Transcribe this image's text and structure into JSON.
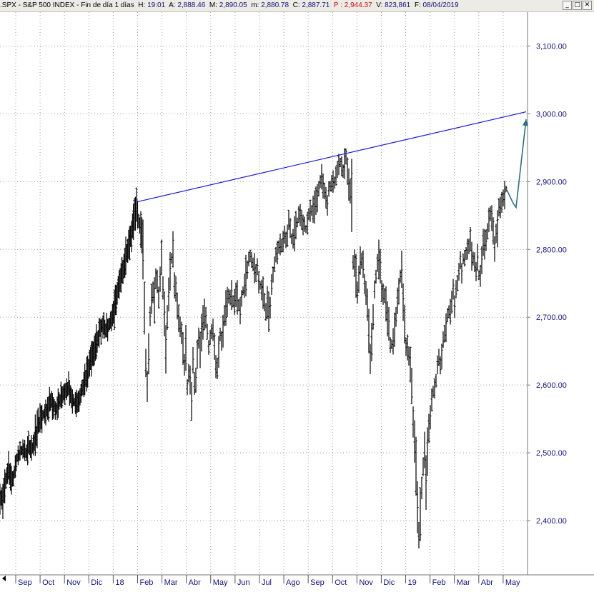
{
  "header": {
    "symbol": ".SPX",
    "sep1": " - ",
    "name": "S&P 500 INDEX",
    "sep2": " - ",
    "period": "Fin de día 1 días",
    "h_label": "H:",
    "h_value": "19:01",
    "a_label": "A:",
    "a_value": "2,888.46",
    "m_label": "M:",
    "m_value": "2,890.05",
    "mm_label": "m:",
    "mm_value": "2,880.78",
    "c_label": "C:",
    "c_value": "2,887.71",
    "p_label": "P :",
    "p_value": "2,944.37",
    "v_label": "V:",
    "v_value": "823,861",
    "f_label": "F:",
    "f_value": "08/04/2019"
  },
  "window_controls": {
    "minimize": "_",
    "restore": "□",
    "close": "✕"
  },
  "colors": {
    "price": "#000000",
    "trendline": "#1a1ad2",
    "projection_arrow": "#2e6f7a",
    "axis_text": "#13137a",
    "grid": "#a0a0a0"
  },
  "chart_data": {
    "type": "bar",
    "subtype": "ohlc-daily",
    "title": "",
    "xlabel": "",
    "ylabel": "",
    "ylim": [
      2320,
      3150
    ],
    "yticks": [
      2400,
      2500,
      2600,
      2700,
      2800,
      2900,
      3000,
      3100
    ],
    "ytick_labels": [
      "2,400.00",
      "2,500.00",
      "2,600.00",
      "2,700.00",
      "2,800.00",
      "2,900.00",
      "3,000.00",
      "3,100.00"
    ],
    "xaxis_labels": [
      "Sep",
      "Oct",
      "Nov",
      "Dic",
      "18",
      "Feb",
      "Mar",
      "Abr",
      "May",
      "Jun",
      "Jul",
      "Ago",
      "Sep",
      "Oct",
      "Nov",
      "Dic",
      "19",
      "Feb",
      "Mar",
      "Abr",
      "May"
    ],
    "grid": true,
    "series": [
      {
        "values": [
          [
            0,
            2440
          ],
          [
            4,
            2428
          ],
          [
            8,
            2462
          ],
          [
            12,
            2475
          ],
          [
            16,
            2460
          ],
          [
            20,
            2470
          ],
          [
            24,
            2492
          ],
          [
            28,
            2500
          ],
          [
            32,
            2508
          ],
          [
            36,
            2500
          ],
          [
            40,
            2510
          ],
          [
            44,
            2500
          ],
          [
            48,
            2515
          ],
          [
            52,
            2535
          ],
          [
            56,
            2550
          ],
          [
            60,
            2555
          ],
          [
            64,
            2560
          ],
          [
            68,
            2568
          ],
          [
            72,
            2575
          ],
          [
            76,
            2568
          ],
          [
            80,
            2565
          ],
          [
            84,
            2580
          ],
          [
            88,
            2585
          ],
          [
            92,
            2590
          ],
          [
            96,
            2595
          ],
          [
            100,
            2585
          ],
          [
            104,
            2575
          ],
          [
            108,
            2570
          ],
          [
            112,
            2585
          ],
          [
            116,
            2600
          ],
          [
            120,
            2610
          ],
          [
            124,
            2625
          ],
          [
            128,
            2640
          ],
          [
            132,
            2650
          ],
          [
            136,
            2665
          ],
          [
            140,
            2680
          ],
          [
            144,
            2690
          ],
          [
            148,
            2680
          ],
          [
            152,
            2685
          ],
          [
            156,
            2695
          ],
          [
            160,
            2712
          ],
          [
            164,
            2735
          ],
          [
            168,
            2750
          ],
          [
            172,
            2768
          ],
          [
            176,
            2790
          ],
          [
            180,
            2808
          ],
          [
            184,
            2828
          ],
          [
            188,
            2850
          ],
          [
            191,
            2870
          ],
          [
            194,
            2840
          ],
          [
            197,
            2830
          ],
          [
            200,
            2810
          ],
          [
            202,
            2700
          ],
          [
            204,
            2625
          ],
          [
            206,
            2600
          ],
          [
            208,
            2640
          ],
          [
            210,
            2700
          ],
          [
            212,
            2720
          ],
          [
            214,
            2740
          ],
          [
            216,
            2725
          ],
          [
            218,
            2760
          ],
          [
            220,
            2748
          ],
          [
            222,
            2735
          ],
          [
            224,
            2760
          ],
          [
            226,
            2785
          ],
          [
            228,
            2740
          ],
          [
            230,
            2700
          ],
          [
            232,
            2660
          ],
          [
            234,
            2700
          ],
          [
            236,
            2730
          ],
          [
            238,
            2770
          ],
          [
            240,
            2790
          ],
          [
            242,
            2795
          ],
          [
            244,
            2750
          ],
          [
            246,
            2740
          ],
          [
            248,
            2715
          ],
          [
            250,
            2700
          ],
          [
            252,
            2690
          ],
          [
            254,
            2680
          ],
          [
            256,
            2660
          ],
          [
            258,
            2630
          ],
          [
            260,
            2650
          ],
          [
            262,
            2600
          ],
          [
            264,
            2620
          ],
          [
            266,
            2605
          ],
          [
            268,
            2580
          ],
          [
            270,
            2640
          ],
          [
            272,
            2600
          ],
          [
            274,
            2610
          ],
          [
            276,
            2640
          ],
          [
            278,
            2670
          ],
          [
            280,
            2650
          ],
          [
            282,
            2675
          ],
          [
            284,
            2690
          ],
          [
            286,
            2705
          ],
          [
            288,
            2700
          ],
          [
            290,
            2680
          ],
          [
            292,
            2660
          ],
          [
            294,
            2670
          ],
          [
            296,
            2680
          ],
          [
            298,
            2680
          ],
          [
            300,
            2650
          ],
          [
            302,
            2630
          ],
          [
            304,
            2620
          ],
          [
            306,
            2650
          ],
          [
            308,
            2670
          ],
          [
            310,
            2665
          ],
          [
            312,
            2680
          ],
          [
            314,
            2700
          ],
          [
            316,
            2715
          ],
          [
            318,
            2722
          ],
          [
            320,
            2730
          ],
          [
            322,
            2725
          ],
          [
            324,
            2735
          ],
          [
            326,
            2725
          ],
          [
            328,
            2720
          ],
          [
            330,
            2735
          ],
          [
            332,
            2730
          ],
          [
            334,
            2715
          ],
          [
            336,
            2712
          ],
          [
            338,
            2730
          ],
          [
            340,
            2740
          ],
          [
            342,
            2748
          ],
          [
            344,
            2760
          ],
          [
            346,
            2775
          ],
          [
            348,
            2785
          ],
          [
            350,
            2790
          ],
          [
            352,
            2785
          ],
          [
            354,
            2780
          ],
          [
            356,
            2770
          ],
          [
            358,
            2760
          ],
          [
            360,
            2770
          ],
          [
            362,
            2755
          ],
          [
            364,
            2745
          ],
          [
            366,
            2740
          ],
          [
            368,
            2735
          ],
          [
            370,
            2725
          ],
          [
            372,
            2712
          ],
          [
            374,
            2720
          ],
          [
            376,
            2705
          ],
          [
            378,
            2720
          ],
          [
            380,
            2745
          ],
          [
            382,
            2765
          ],
          [
            384,
            2780
          ],
          [
            386,
            2790
          ],
          [
            388,
            2798
          ],
          [
            390,
            2805
          ],
          [
            392,
            2800
          ],
          [
            394,
            2810
          ],
          [
            396,
            2815
          ],
          [
            398,
            2820
          ],
          [
            400,
            2810
          ],
          [
            402,
            2825
          ],
          [
            404,
            2840
          ],
          [
            406,
            2830
          ],
          [
            408,
            2815
          ],
          [
            410,
            2810
          ],
          [
            412,
            2825
          ],
          [
            414,
            2835
          ],
          [
            416,
            2840
          ],
          [
            418,
            2850
          ],
          [
            420,
            2848
          ],
          [
            422,
            2845
          ],
          [
            424,
            2840
          ],
          [
            426,
            2835
          ],
          [
            428,
            2830
          ],
          [
            430,
            2840
          ],
          [
            432,
            2850
          ],
          [
            434,
            2850
          ],
          [
            436,
            2855
          ],
          [
            438,
            2860
          ],
          [
            440,
            2865
          ],
          [
            442,
            2872
          ],
          [
            444,
            2880
          ],
          [
            446,
            2890
          ],
          [
            448,
            2902
          ],
          [
            450,
            2905
          ],
          [
            452,
            2895
          ],
          [
            454,
            2885
          ],
          [
            456,
            2878
          ],
          [
            458,
            2870
          ],
          [
            460,
            2885
          ],
          [
            462,
            2892
          ],
          [
            464,
            2898
          ],
          [
            466,
            2900
          ],
          [
            468,
            2902
          ],
          [
            470,
            2910
          ],
          [
            472,
            2918
          ],
          [
            474,
            2922
          ],
          [
            476,
            2930
          ],
          [
            478,
            2925
          ],
          [
            480,
            2918
          ],
          [
            482,
            2925
          ],
          [
            484,
            2935
          ],
          [
            486,
            2912
          ],
          [
            488,
            2900
          ],
          [
            490,
            2880
          ],
          [
            492,
            2870
          ],
          [
            494,
            2780
          ],
          [
            496,
            2780
          ],
          [
            498,
            2760
          ],
          [
            500,
            2740
          ],
          [
            502,
            2760
          ],
          [
            504,
            2790
          ],
          [
            506,
            2780
          ],
          [
            508,
            2775
          ],
          [
            510,
            2750
          ],
          [
            512,
            2740
          ],
          [
            514,
            2720
          ],
          [
            516,
            2680
          ],
          [
            518,
            2640
          ],
          [
            520,
            2660
          ],
          [
            522,
            2700
          ],
          [
            524,
            2740
          ],
          [
            526,
            2760
          ],
          [
            528,
            2780
          ],
          [
            530,
            2790
          ],
          [
            532,
            2770
          ],
          [
            534,
            2740
          ],
          [
            536,
            2740
          ],
          [
            538,
            2730
          ],
          [
            540,
            2720
          ],
          [
            542,
            2700
          ],
          [
            544,
            2690
          ],
          [
            546,
            2660
          ],
          [
            548,
            2660
          ],
          [
            550,
            2665
          ],
          [
            552,
            2680
          ],
          [
            554,
            2700
          ],
          [
            556,
            2720
          ],
          [
            558,
            2740
          ],
          [
            560,
            2760
          ],
          [
            562,
            2780
          ],
          [
            564,
            2730
          ],
          [
            566,
            2690
          ],
          [
            568,
            2660
          ],
          [
            570,
            2655
          ],
          [
            572,
            2640
          ],
          [
            574,
            2620
          ],
          [
            576,
            2590
          ],
          [
            578,
            2550
          ],
          [
            580,
            2520
          ],
          [
            582,
            2480
          ],
          [
            584,
            2420
          ],
          [
            586,
            2370
          ],
          [
            588,
            2400
          ],
          [
            590,
            2450
          ],
          [
            592,
            2480
          ],
          [
            594,
            2510
          ],
          [
            596,
            2460
          ],
          [
            598,
            2500
          ],
          [
            600,
            2530
          ],
          [
            602,
            2560
          ],
          [
            604,
            2580
          ],
          [
            606,
            2590
          ],
          [
            608,
            2600
          ],
          [
            610,
            2610
          ],
          [
            612,
            2625
          ],
          [
            614,
            2640
          ],
          [
            616,
            2630
          ],
          [
            618,
            2640
          ],
          [
            620,
            2665
          ],
          [
            622,
            2680
          ],
          [
            624,
            2690
          ],
          [
            626,
            2700
          ],
          [
            628,
            2705
          ],
          [
            630,
            2710
          ],
          [
            632,
            2720
          ],
          [
            634,
            2740
          ],
          [
            636,
            2720
          ],
          [
            638,
            2740
          ],
          [
            640,
            2750
          ],
          [
            642,
            2770
          ],
          [
            644,
            2780
          ],
          [
            646,
            2760
          ],
          [
            648,
            2785
          ],
          [
            650,
            2790
          ],
          [
            652,
            2795
          ],
          [
            654,
            2800
          ],
          [
            656,
            2805
          ],
          [
            658,
            2810
          ],
          [
            660,
            2795
          ],
          [
            662,
            2790
          ],
          [
            664,
            2780
          ],
          [
            666,
            2770
          ],
          [
            668,
            2780
          ],
          [
            670,
            2760
          ],
          [
            672,
            2760
          ],
          [
            674,
            2790
          ],
          [
            676,
            2815
          ],
          [
            678,
            2810
          ],
          [
            680,
            2820
          ],
          [
            682,
            2830
          ],
          [
            684,
            2840
          ],
          [
            686,
            2850
          ],
          [
            688,
            2855
          ],
          [
            690,
            2820
          ],
          [
            692,
            2800
          ],
          [
            694,
            2820
          ],
          [
            696,
            2830
          ],
          [
            698,
            2860
          ],
          [
            700,
            2865
          ],
          [
            702,
            2870
          ],
          [
            704,
            2875
          ],
          [
            706,
            2880
          ],
          [
            708,
            2890
          ]
        ]
      }
    ],
    "trendline": [
      [
        191,
        2870
      ],
      [
        736,
        3003
      ]
    ],
    "projection": [
      [
        708,
        2890
      ],
      [
        718,
        2868
      ],
      [
        722,
        2862
      ],
      [
        736,
        2992
      ]
    ]
  }
}
